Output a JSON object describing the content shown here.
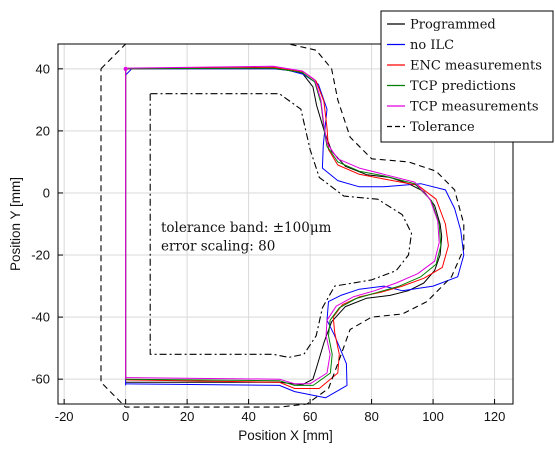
{
  "chart_data": {
    "type": "line",
    "xlabel": "Position X [mm]",
    "ylabel": "Position Y [mm]",
    "xlim": [
      -22,
      126
    ],
    "ylim": [
      -68,
      48
    ],
    "xticks": [
      -20,
      0,
      20,
      40,
      60,
      80,
      100,
      120
    ],
    "yticks": [
      40,
      20,
      0,
      -20,
      -40,
      -60
    ],
    "grid": true,
    "legend_position": "top-right",
    "annotations": [
      "tolerance band: ±100μm",
      "error scaling: 80"
    ],
    "series": [
      {
        "name": "Programmed",
        "color": "#000000",
        "dash": "solid",
        "points": [
          [
            0,
            -60
          ],
          [
            0,
            40
          ],
          [
            50,
            40
          ],
          [
            57.4,
            38.7
          ],
          [
            60.9,
            34.2
          ],
          [
            62.1,
            28.2
          ],
          [
            64.6,
            20.0
          ],
          [
            67.0,
            13.5
          ],
          [
            71.5,
            8.6
          ],
          [
            78.4,
            5.9
          ],
          [
            86,
            5
          ],
          [
            92,
            3
          ],
          [
            97,
            0.5
          ],
          [
            100.5,
            -4
          ],
          [
            102.3,
            -10
          ],
          [
            102.8,
            -14
          ],
          [
            102.3,
            -20
          ],
          [
            100.5,
            -25
          ],
          [
            97,
            -29
          ],
          [
            92,
            -31.5
          ],
          [
            86,
            -33
          ],
          [
            78.4,
            -33.9
          ],
          [
            71.5,
            -36.6
          ],
          [
            67.0,
            -41.5
          ],
          [
            64.6,
            -48.0
          ],
          [
            62.1,
            -56.2
          ],
          [
            60.9,
            -60
          ],
          [
            57.4,
            -61.8
          ],
          [
            50,
            -61
          ],
          [
            0,
            -61
          ]
        ]
      },
      {
        "name": "no ILC",
        "color": "#0000ff",
        "dash": "solid",
        "points": [
          [
            0,
            -62
          ],
          [
            0,
            38
          ],
          [
            2,
            40
          ],
          [
            48,
            40
          ],
          [
            53,
            39.5
          ],
          [
            57.9,
            38.2
          ],
          [
            62.7,
            35.0
          ],
          [
            65.5,
            27.0
          ],
          [
            64.3,
            15.5
          ],
          [
            64,
            8
          ],
          [
            69,
            4
          ],
          [
            76,
            2
          ],
          [
            84,
            2
          ],
          [
            96,
            3
          ],
          [
            104,
            1
          ],
          [
            107,
            -5
          ],
          [
            109,
            -12
          ],
          [
            110,
            -20
          ],
          [
            108,
            -27
          ],
          [
            100,
            -30
          ],
          [
            90,
            -31.5
          ],
          [
            84,
            -30
          ],
          [
            76,
            -31
          ],
          [
            70,
            -33
          ],
          [
            66,
            -35
          ],
          [
            65.5,
            -41
          ],
          [
            68,
            -46
          ],
          [
            71.8,
            -55
          ],
          [
            72,
            -62
          ],
          [
            65,
            -66
          ],
          [
            55,
            -64
          ],
          [
            50,
            -62
          ],
          [
            0,
            -61.5
          ]
        ]
      },
      {
        "name": "ENC measurements",
        "color": "#ff0000",
        "dash": "solid",
        "points": [
          [
            0,
            -60
          ],
          [
            0,
            40
          ],
          [
            48,
            40.5
          ],
          [
            53,
            39.7
          ],
          [
            58,
            38.9
          ],
          [
            62,
            36
          ],
          [
            64.5,
            29.5
          ],
          [
            65.5,
            21
          ],
          [
            66,
            14
          ],
          [
            69,
            9
          ],
          [
            76,
            6
          ],
          [
            84,
            4.5
          ],
          [
            95,
            2.5
          ],
          [
            101,
            -2
          ],
          [
            104,
            -10
          ],
          [
            105,
            -17
          ],
          [
            103,
            -24
          ],
          [
            97,
            -27.5
          ],
          [
            90,
            -30
          ],
          [
            83,
            -32
          ],
          [
            76,
            -33.5
          ],
          [
            70.5,
            -36
          ],
          [
            67.5,
            -40
          ],
          [
            68,
            -45
          ],
          [
            69.5,
            -52
          ],
          [
            69,
            -58
          ],
          [
            63,
            -63
          ],
          [
            55,
            -63
          ],
          [
            50,
            -61
          ],
          [
            0,
            -60.2
          ]
        ]
      },
      {
        "name": "TCP predictions",
        "color": "#008000",
        "dash": "solid",
        "points": [
          [
            0,
            -60
          ],
          [
            0,
            40
          ],
          [
            48,
            40.2
          ],
          [
            53,
            39.5
          ],
          [
            57.5,
            38.8
          ],
          [
            61.5,
            35.8
          ],
          [
            63.5,
            29
          ],
          [
            64.5,
            21
          ],
          [
            65.5,
            15
          ],
          [
            69,
            10
          ],
          [
            76,
            7
          ],
          [
            84,
            5.5
          ],
          [
            94,
            3
          ],
          [
            99.5,
            -2.5
          ],
          [
            102,
            -10
          ],
          [
            102.5,
            -17
          ],
          [
            101,
            -23
          ],
          [
            96,
            -27
          ],
          [
            89,
            -30
          ],
          [
            82,
            -32
          ],
          [
            75,
            -34
          ],
          [
            69.5,
            -37
          ],
          [
            66.5,
            -41
          ],
          [
            66,
            -46
          ],
          [
            67.2,
            -52
          ],
          [
            66.6,
            -58
          ],
          [
            61,
            -62
          ],
          [
            55,
            -62
          ],
          [
            50,
            -60.5
          ],
          [
            0,
            -60
          ]
        ]
      },
      {
        "name": "TCP measurements",
        "color": "#e000e0",
        "dash": "solid",
        "points": [
          [
            0,
            -60
          ],
          [
            0,
            40.2
          ],
          [
            48,
            40.8
          ],
          [
            53,
            40
          ],
          [
            57.5,
            39.3
          ],
          [
            61.5,
            36.5
          ],
          [
            63.5,
            30
          ],
          [
            64.5,
            22
          ],
          [
            65.5,
            16
          ],
          [
            69,
            11
          ],
          [
            76,
            8
          ],
          [
            84,
            6
          ],
          [
            94,
            3.5
          ],
          [
            99,
            -2
          ],
          [
            101.5,
            -9
          ],
          [
            102,
            -16
          ],
          [
            100.5,
            -22
          ],
          [
            95,
            -26
          ],
          [
            88,
            -29
          ],
          [
            81,
            -31.5
          ],
          [
            74,
            -33.5
          ],
          [
            68.5,
            -36.5
          ],
          [
            65.5,
            -41
          ],
          [
            65.2,
            -46
          ],
          [
            66.5,
            -52
          ],
          [
            65.5,
            -58
          ],
          [
            60,
            -61.5
          ],
          [
            55,
            -61.5
          ],
          [
            50,
            -60
          ],
          [
            0,
            -59.5
          ]
        ]
      },
      {
        "name": "Tolerance",
        "color": "#000000",
        "dash": "dashed",
        "points": [
          [
            -8,
            40
          ],
          [
            0,
            48
          ],
          [
            53,
            48
          ],
          [
            62,
            46
          ],
          [
            67,
            40
          ],
          [
            69,
            30
          ],
          [
            73,
            18
          ],
          [
            80,
            11
          ],
          [
            92,
            10
          ],
          [
            101,
            7
          ],
          [
            107,
            1
          ],
          [
            110,
            -10
          ],
          [
            110,
            -18
          ],
          [
            106,
            -27
          ],
          [
            98,
            -35
          ],
          [
            90,
            -39
          ],
          [
            80,
            -40
          ],
          [
            73,
            -44
          ],
          [
            69,
            -55
          ],
          [
            66,
            -63
          ],
          [
            59,
            -68
          ],
          [
            50,
            -69
          ],
          [
            0,
            -69
          ],
          [
            -8,
            -61
          ],
          [
            -8,
            40
          ]
        ]
      },
      {
        "name": "",
        "color": "#000000",
        "dash": "dashdot",
        "points": [
          [
            8,
            32
          ],
          [
            8,
            -52
          ],
          [
            48,
            -52
          ],
          [
            53,
            -53
          ],
          [
            58,
            -52
          ],
          [
            62,
            -46
          ],
          [
            64,
            -37
          ],
          [
            68,
            -30
          ],
          [
            80,
            -28
          ],
          [
            88,
            -25
          ],
          [
            92,
            -20
          ],
          [
            93,
            -13
          ],
          [
            90,
            -7
          ],
          [
            82,
            -2
          ],
          [
            71,
            -1
          ],
          [
            63,
            5
          ],
          [
            60,
            14
          ],
          [
            57,
            27
          ],
          [
            50,
            32
          ],
          [
            8,
            32
          ]
        ]
      }
    ]
  }
}
